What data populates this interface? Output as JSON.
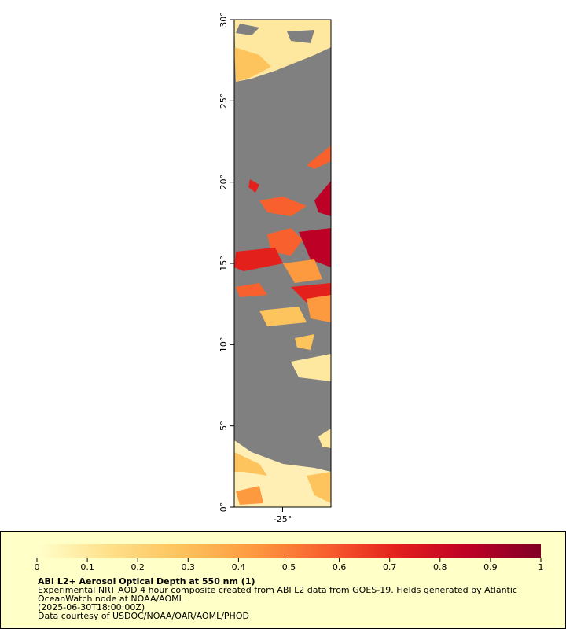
{
  "map": {
    "xlim": [
      -28,
      -22
    ],
    "ylim": [
      0,
      30
    ],
    "xticks": [
      {
        "value": -25,
        "label": "-25°"
      }
    ],
    "yticks": [
      {
        "value": 0,
        "label": "0°"
      },
      {
        "value": 5,
        "label": "5°"
      },
      {
        "value": 10,
        "label": "10°"
      },
      {
        "value": 15,
        "label": "15°"
      },
      {
        "value": 20,
        "label": "20°"
      },
      {
        "value": 25,
        "label": "25°"
      },
      {
        "value": 30,
        "label": "30°"
      }
    ],
    "background": "#808080"
  },
  "colorbar": {
    "lim": [
      0,
      1
    ],
    "ticks": [
      0,
      0.1,
      0.2,
      0.3,
      0.4,
      0.5,
      0.6,
      0.7,
      0.8,
      0.9,
      1
    ],
    "colors": [
      "#ffffcc",
      "#ffe08a",
      "#fdc35c",
      "#fd9a40",
      "#f8612e",
      "#e3201c",
      "#bd0026",
      "#800026"
    ]
  },
  "caption": {
    "title": "ABI L2+ Aerosol Optical Depth at 550 nm (1)",
    "lines": [
      "Experimental NRT AOD 4 hour composite created from ABI L2 data from GOES-19. Fields generated by Atlantic",
      "OceanWatch node at NOAA/AOML",
      "(2025-06-30T18:00:00Z)",
      "Data courtesy of USDOC/NOAA/OAR/AOML/PHOD"
    ]
  }
}
